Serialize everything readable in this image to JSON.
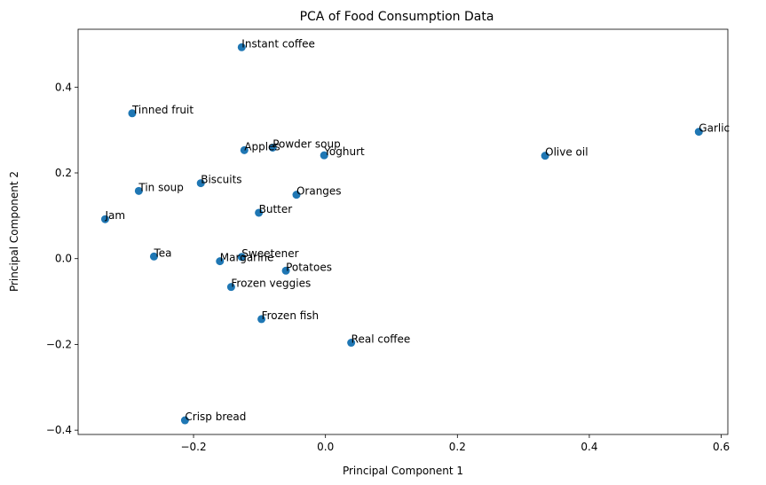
{
  "chart_data": {
    "type": "scatter",
    "title": "PCA of Food Consumption Data",
    "xlabel": "Principal Component 1",
    "ylabel": "Principal Component 2",
    "xlim": [
      -0.375,
      0.61
    ],
    "ylim": [
      -0.41,
      0.535
    ],
    "xticks": [
      -0.2,
      0.0,
      0.2,
      0.4,
      0.6
    ],
    "xtick_labels": [
      "−0.2",
      "0.0",
      "0.2",
      "0.4",
      "0.6"
    ],
    "yticks": [
      -0.4,
      -0.2,
      0.0,
      0.2,
      0.4
    ],
    "ytick_labels": [
      "−0.4",
      "−0.2",
      "0.0",
      "0.2",
      "0.4"
    ],
    "grid": false,
    "marker_color": "#1f77b4",
    "points": [
      {
        "label": "Instant coffee",
        "x": -0.127,
        "y": 0.493
      },
      {
        "label": "Tinned fruit",
        "x": -0.293,
        "y": 0.339
      },
      {
        "label": "Garlic",
        "x": 0.566,
        "y": 0.296
      },
      {
        "label": "Apples",
        "x": -0.123,
        "y": 0.253
      },
      {
        "label": "Powder soup",
        "x": -0.08,
        "y": 0.259
      },
      {
        "label": "Yoghurt",
        "x": -0.002,
        "y": 0.241
      },
      {
        "label": "Olive oil",
        "x": 0.333,
        "y": 0.24
      },
      {
        "label": "Biscuits",
        "x": -0.189,
        "y": 0.176
      },
      {
        "label": "Tin soup",
        "x": -0.283,
        "y": 0.158
      },
      {
        "label": "Oranges",
        "x": -0.044,
        "y": 0.149
      },
      {
        "label": "Butter",
        "x": -0.101,
        "y": 0.107
      },
      {
        "label": "Jam",
        "x": -0.334,
        "y": 0.092
      },
      {
        "label": "Tea",
        "x": -0.26,
        "y": 0.005
      },
      {
        "label": "Sweetener",
        "x": -0.127,
        "y": 0.004
      },
      {
        "label": "Margarine",
        "x": -0.16,
        "y": -0.006
      },
      {
        "label": "Potatoes",
        "x": -0.06,
        "y": -0.028
      },
      {
        "label": "Frozen veggies",
        "x": -0.143,
        "y": -0.066
      },
      {
        "label": "Frozen fish",
        "x": -0.097,
        "y": -0.141
      },
      {
        "label": "Real coffee",
        "x": 0.039,
        "y": -0.196
      },
      {
        "label": "Crisp bread",
        "x": -0.213,
        "y": -0.377
      }
    ]
  }
}
